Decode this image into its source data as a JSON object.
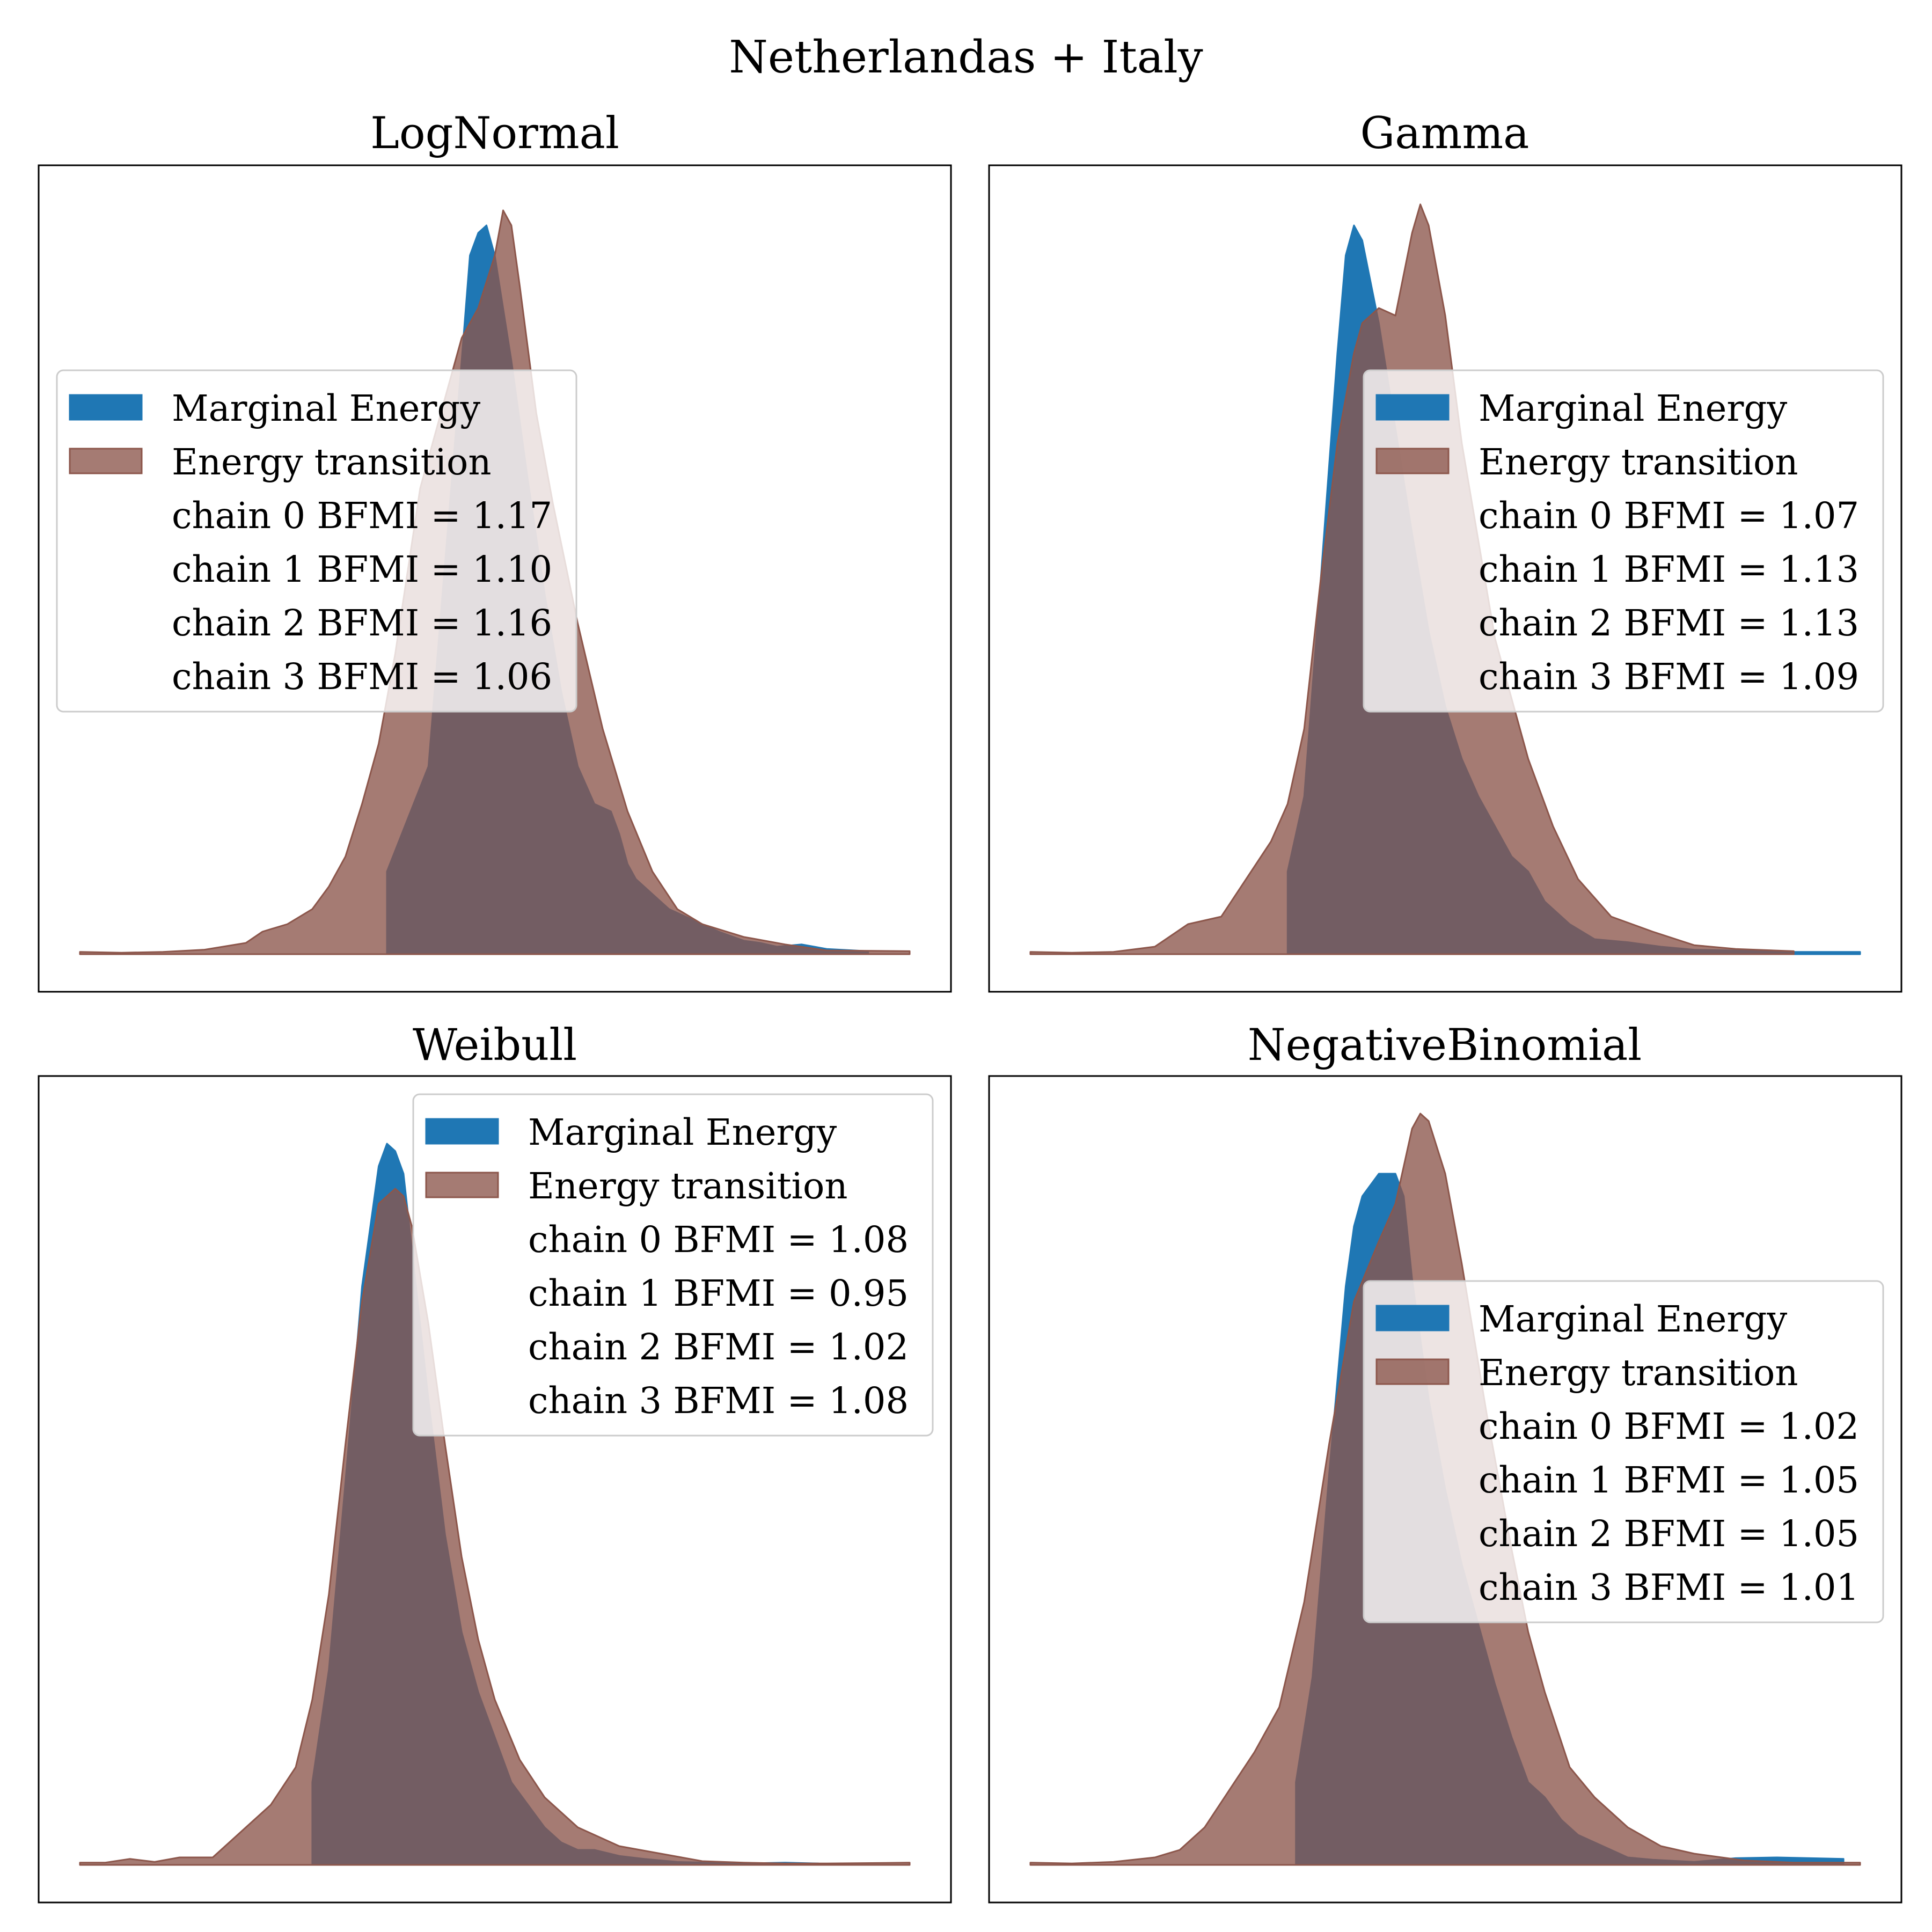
{
  "figure": {
    "title": "Netherlandas + Italy"
  },
  "colors": {
    "marginal_energy": "#1f77b4",
    "energy_transition": "#8c564b",
    "overlap": "#6e5a60"
  },
  "chart_data": [
    {
      "type": "area",
      "title": "LogNormal",
      "xlabel": "",
      "ylabel": "",
      "axes_ticks": false,
      "grid": false,
      "legend_position": "center-left",
      "legend": [
        "Marginal Energy",
        "Energy transition",
        "chain  0 BFMI = 1.17",
        "chain  1 BFMI = 1.10",
        "chain  2 BFMI = 1.16",
        "chain  3 BFMI = 1.06"
      ],
      "series": [
        {
          "name": "Marginal Energy",
          "x": [
            0.37,
            0.37,
            0.42,
            0.44,
            0.46,
            0.47,
            0.48,
            0.49,
            0.5,
            0.52,
            0.54,
            0.56,
            0.58,
            0.6,
            0.62,
            0.64,
            0.65,
            0.66,
            0.67,
            0.69,
            0.71,
            0.73,
            0.75,
            0.77,
            0.8,
            0.82,
            0.84,
            0.87,
            0.9,
            0.95
          ],
          "density": [
            0,
            0.11,
            0.25,
            0.52,
            0.79,
            0.93,
            0.96,
            0.97,
            0.93,
            0.79,
            0.63,
            0.48,
            0.35,
            0.25,
            0.2,
            0.19,
            0.16,
            0.12,
            0.1,
            0.08,
            0.06,
            0.05,
            0.04,
            0.03,
            0.018,
            0.015,
            0.01,
            0.013,
            0.007,
            0.004
          ]
        },
        {
          "name": "Energy transition",
          "x": [
            0.0,
            0.05,
            0.1,
            0.15,
            0.2,
            0.22,
            0.25,
            0.28,
            0.3,
            0.32,
            0.34,
            0.36,
            0.38,
            0.41,
            0.44,
            0.46,
            0.48,
            0.5,
            0.51,
            0.52,
            0.53,
            0.55,
            0.57,
            0.6,
            0.63,
            0.66,
            0.69,
            0.72,
            0.75,
            0.8,
            0.85,
            0.9,
            1.0
          ],
          "density": [
            0.003,
            0.002,
            0.003,
            0.006,
            0.015,
            0.03,
            0.04,
            0.06,
            0.09,
            0.13,
            0.2,
            0.28,
            0.4,
            0.62,
            0.74,
            0.82,
            0.86,
            0.93,
            0.99,
            0.97,
            0.89,
            0.72,
            0.6,
            0.44,
            0.3,
            0.19,
            0.11,
            0.06,
            0.04,
            0.023,
            0.013,
            0.005,
            0.004
          ]
        }
      ]
    },
    {
      "type": "area",
      "title": "Gamma",
      "xlabel": "",
      "ylabel": "",
      "axes_ticks": false,
      "grid": false,
      "legend_position": "center-right",
      "legend": [
        "Marginal Energy",
        "Energy transition",
        "chain  0 BFMI = 1.07",
        "chain  1 BFMI = 1.13",
        "chain  2 BFMI = 1.13",
        "chain  3 BFMI = 1.09"
      ],
      "series": [
        {
          "name": "Marginal Energy",
          "x": [
            0.31,
            0.31,
            0.33,
            0.35,
            0.37,
            0.38,
            0.39,
            0.4,
            0.42,
            0.44,
            0.46,
            0.48,
            0.5,
            0.52,
            0.54,
            0.56,
            0.58,
            0.6,
            0.62,
            0.65,
            0.68,
            0.72,
            0.76,
            0.8,
            0.85,
            0.9,
            0.95,
            1.0
          ],
          "density": [
            0,
            0.11,
            0.21,
            0.5,
            0.8,
            0.93,
            0.97,
            0.95,
            0.84,
            0.7,
            0.56,
            0.43,
            0.33,
            0.26,
            0.21,
            0.17,
            0.13,
            0.11,
            0.07,
            0.04,
            0.02,
            0.016,
            0.01,
            0.006,
            0.005,
            0.003,
            0.003,
            0.003
          ]
        },
        {
          "name": "Energy transition",
          "x": [
            0.0,
            0.05,
            0.1,
            0.15,
            0.19,
            0.23,
            0.26,
            0.29,
            0.31,
            0.33,
            0.35,
            0.37,
            0.39,
            0.4,
            0.42,
            0.44,
            0.46,
            0.47,
            0.48,
            0.5,
            0.52,
            0.54,
            0.56,
            0.6,
            0.63,
            0.66,
            0.7,
            0.75,
            0.8,
            0.85,
            0.92
          ],
          "density": [
            0.003,
            0.002,
            0.003,
            0.01,
            0.04,
            0.05,
            0.1,
            0.15,
            0.2,
            0.3,
            0.5,
            0.68,
            0.8,
            0.84,
            0.86,
            0.85,
            0.96,
            0.998,
            0.97,
            0.85,
            0.68,
            0.55,
            0.42,
            0.26,
            0.17,
            0.1,
            0.05,
            0.03,
            0.012,
            0.007,
            0.004
          ]
        }
      ]
    },
    {
      "type": "area",
      "title": "Weibull",
      "xlabel": "",
      "ylabel": "",
      "axes_ticks": false,
      "grid": false,
      "legend_position": "upper-right",
      "legend": [
        "Marginal Energy",
        "Energy transition",
        "chain  0 BFMI = 1.08",
        "chain  1 BFMI = 0.95",
        "chain  2 BFMI = 1.02",
        "chain  3 BFMI = 1.08"
      ],
      "series": [
        {
          "name": "Marginal Energy",
          "x": [
            0.28,
            0.28,
            0.3,
            0.32,
            0.34,
            0.36,
            0.37,
            0.38,
            0.39,
            0.4,
            0.42,
            0.44,
            0.46,
            0.48,
            0.5,
            0.52,
            0.54,
            0.56,
            0.58,
            0.6,
            0.62,
            0.65,
            0.68,
            0.72,
            0.76,
            0.8,
            0.85,
            0.89
          ],
          "density": [
            0,
            0.11,
            0.26,
            0.51,
            0.77,
            0.93,
            0.96,
            0.95,
            0.92,
            0.82,
            0.62,
            0.44,
            0.31,
            0.23,
            0.17,
            0.11,
            0.08,
            0.05,
            0.03,
            0.02,
            0.02,
            0.012,
            0.008,
            0.004,
            0.003,
            0.002,
            0.003,
            0.002
          ]
        },
        {
          "name": "Energy transition",
          "x": [
            0.0,
            0.03,
            0.06,
            0.09,
            0.12,
            0.16,
            0.2,
            0.23,
            0.26,
            0.28,
            0.3,
            0.32,
            0.34,
            0.36,
            0.38,
            0.39,
            0.4,
            0.42,
            0.44,
            0.46,
            0.48,
            0.5,
            0.53,
            0.56,
            0.6,
            0.65,
            0.7,
            0.75,
            0.8,
            0.85,
            0.9,
            1.0
          ],
          "density": [
            0.003,
            0.003,
            0.008,
            0.004,
            0.01,
            0.01,
            0.05,
            0.08,
            0.13,
            0.22,
            0.36,
            0.56,
            0.75,
            0.88,
            0.9,
            0.89,
            0.85,
            0.72,
            0.56,
            0.41,
            0.3,
            0.22,
            0.14,
            0.09,
            0.05,
            0.025,
            0.015,
            0.005,
            0.003,
            0.002,
            0.002,
            0.003
          ]
        }
      ]
    },
    {
      "type": "area",
      "title": "NegativeBinomial",
      "xlabel": "",
      "ylabel": "",
      "axes_ticks": false,
      "grid": false,
      "legend_position": "center-right",
      "legend": [
        "Marginal Energy",
        "Energy transition",
        "chain  0 BFMI = 1.02",
        "chain  1 BFMI = 1.05",
        "chain  2 BFMI = 1.05",
        "chain  3 BFMI = 1.01"
      ],
      "series": [
        {
          "name": "Marginal Energy",
          "x": [
            0.32,
            0.32,
            0.34,
            0.36,
            0.38,
            0.39,
            0.4,
            0.42,
            0.44,
            0.45,
            0.46,
            0.48,
            0.5,
            0.52,
            0.54,
            0.56,
            0.58,
            0.6,
            0.62,
            0.64,
            0.66,
            0.68,
            0.7,
            0.72,
            0.75,
            0.8,
            0.85,
            0.9,
            0.98
          ],
          "density": [
            0,
            0.11,
            0.25,
            0.52,
            0.77,
            0.85,
            0.89,
            0.92,
            0.92,
            0.89,
            0.78,
            0.62,
            0.5,
            0.4,
            0.32,
            0.24,
            0.17,
            0.11,
            0.09,
            0.06,
            0.04,
            0.03,
            0.02,
            0.01,
            0.007,
            0.004,
            0.009,
            0.01,
            0.008
          ]
        },
        {
          "name": "Energy transition",
          "x": [
            0.0,
            0.05,
            0.1,
            0.15,
            0.18,
            0.21,
            0.24,
            0.27,
            0.3,
            0.33,
            0.36,
            0.39,
            0.42,
            0.44,
            0.46,
            0.47,
            0.48,
            0.5,
            0.52,
            0.55,
            0.58,
            0.6,
            0.62,
            0.65,
            0.68,
            0.72,
            0.76,
            0.8,
            0.86,
            0.92,
            1.0
          ],
          "density": [
            0.003,
            0.002,
            0.004,
            0.01,
            0.02,
            0.05,
            0.1,
            0.15,
            0.21,
            0.35,
            0.56,
            0.75,
            0.83,
            0.88,
            0.98,
            1.0,
            0.99,
            0.92,
            0.8,
            0.6,
            0.42,
            0.31,
            0.23,
            0.13,
            0.09,
            0.05,
            0.025,
            0.015,
            0.006,
            0.003,
            0.003
          ]
        }
      ]
    }
  ]
}
